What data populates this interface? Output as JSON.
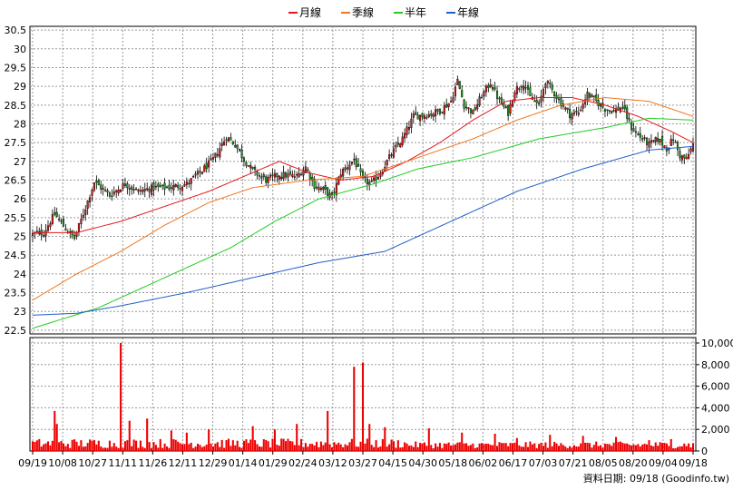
{
  "chart_data": {
    "type": "candlestick",
    "legend": [
      {
        "label": "月線",
        "color": "#e31a1c"
      },
      {
        "label": "季線",
        "color": "#f07820"
      },
      {
        "label": "半年",
        "color": "#22cc22"
      },
      {
        "label": "年線",
        "color": "#1f5fc8"
      }
    ],
    "price_axis": {
      "ylim": [
        22.4,
        30.6
      ],
      "ticks": [
        22.5,
        23,
        23.5,
        24,
        24.5,
        25,
        25.5,
        26,
        26.5,
        27,
        27.5,
        28,
        28.5,
        29,
        29.5,
        30,
        30.5
      ],
      "tick_labels": [
        "22.5",
        "23",
        "23.5",
        "24",
        "24.5",
        "25",
        "25.5",
        "26",
        "26.5",
        "27",
        "27.5",
        "28",
        "28.5",
        "29",
        "29.5",
        "30",
        "30.5"
      ]
    },
    "volume_axis": {
      "ylim": [
        0,
        10000
      ],
      "ticks": [
        0,
        2000,
        4000,
        6000,
        8000,
        10000
      ],
      "tick_labels": [
        "0",
        "2,000",
        "4,000",
        "6,000",
        "8,000",
        "10,000"
      ]
    },
    "x_tick_labels": [
      "09/19",
      "10/08",
      "10/27",
      "11/11",
      "11/26",
      "12/11",
      "12/29",
      "01/14",
      "01/29",
      "02/24",
      "03/12",
      "03/27",
      "04/15",
      "04/30",
      "05/18",
      "06/02",
      "06/17",
      "07/03",
      "07/21",
      "08/05",
      "08/20",
      "09/04",
      "09/18"
    ],
    "series": [
      {
        "name": "月線",
        "ma_period": 20,
        "color": "#e31a1c",
        "keypoints": [
          [
            20,
            25.1
          ],
          [
            40,
            25.4
          ],
          [
            60,
            25.8
          ],
          [
            80,
            26.2
          ],
          [
            100,
            26.7
          ],
          [
            112,
            27.0
          ],
          [
            125,
            26.7
          ],
          [
            140,
            26.5
          ],
          [
            155,
            26.6
          ],
          [
            170,
            27.0
          ],
          [
            185,
            27.5
          ],
          [
            200,
            28.1
          ],
          [
            215,
            28.6
          ],
          [
            230,
            28.7
          ],
          [
            245,
            28.7
          ],
          [
            260,
            28.5
          ],
          [
            275,
            28.2
          ],
          [
            290,
            27.8
          ],
          [
            300,
            27.5
          ]
        ]
      },
      {
        "name": "季線",
        "ma_period": 60,
        "color": "#f07820",
        "keypoints": [
          [
            0,
            23.3
          ],
          [
            20,
            24.0
          ],
          [
            40,
            24.6
          ],
          [
            60,
            25.3
          ],
          [
            80,
            25.9
          ],
          [
            100,
            26.3
          ],
          [
            125,
            26.5
          ],
          [
            150,
            26.6
          ],
          [
            175,
            27.1
          ],
          [
            200,
            27.6
          ],
          [
            220,
            28.1
          ],
          [
            240,
            28.5
          ],
          [
            260,
            28.7
          ],
          [
            280,
            28.6
          ],
          [
            300,
            28.2
          ]
        ]
      },
      {
        "name": "半年",
        "ma_period": 120,
        "color": "#22cc22",
        "keypoints": [
          [
            0,
            22.55
          ],
          [
            30,
            23.1
          ],
          [
            60,
            23.9
          ],
          [
            90,
            24.7
          ],
          [
            110,
            25.4
          ],
          [
            130,
            26.0
          ],
          [
            155,
            26.4
          ],
          [
            175,
            26.8
          ],
          [
            200,
            27.1
          ],
          [
            230,
            27.6
          ],
          [
            260,
            27.9
          ],
          [
            280,
            28.15
          ],
          [
            300,
            28.1
          ]
        ]
      },
      {
        "name": "年線",
        "ma_period": 240,
        "color": "#1f5fc8",
        "keypoints": [
          [
            0,
            22.9
          ],
          [
            20,
            22.95
          ],
          [
            40,
            23.15
          ],
          [
            70,
            23.5
          ],
          [
            100,
            23.9
          ],
          [
            130,
            24.3
          ],
          [
            160,
            24.6
          ],
          [
            190,
            25.4
          ],
          [
            220,
            26.2
          ],
          [
            250,
            26.8
          ],
          [
            280,
            27.3
          ],
          [
            300,
            27.4
          ]
        ]
      }
    ],
    "candles_close_keypoints": [
      [
        0,
        25.05
      ],
      [
        5,
        25.1
      ],
      [
        10,
        25.6
      ],
      [
        15,
        25.2
      ],
      [
        19,
        24.95
      ],
      [
        23,
        25.6
      ],
      [
        28,
        26.45
      ],
      [
        35,
        26.1
      ],
      [
        42,
        26.4
      ],
      [
        48,
        26.2
      ],
      [
        55,
        26.3
      ],
      [
        62,
        26.3
      ],
      [
        70,
        26.4
      ],
      [
        76,
        26.7
      ],
      [
        82,
        27.05
      ],
      [
        88,
        27.65
      ],
      [
        92,
        27.45
      ],
      [
        96,
        27.05
      ],
      [
        100,
        26.75
      ],
      [
        106,
        26.5
      ],
      [
        112,
        26.65
      ],
      [
        120,
        26.6
      ],
      [
        124,
        26.85
      ],
      [
        128,
        26.35
      ],
      [
        132,
        26.25
      ],
      [
        136,
        26.05
      ],
      [
        140,
        26.7
      ],
      [
        146,
        27.05
      ],
      [
        150,
        26.5
      ],
      [
        154,
        26.4
      ],
      [
        158,
        26.7
      ],
      [
        163,
        27.2
      ],
      [
        168,
        27.6
      ],
      [
        173,
        28.2
      ],
      [
        180,
        28.25
      ],
      [
        185,
        28.35
      ],
      [
        190,
        28.6
      ],
      [
        193,
        29.15
      ],
      [
        196,
        28.5
      ],
      [
        200,
        28.3
      ],
      [
        204,
        28.75
      ],
      [
        208,
        29.1
      ],
      [
        212,
        28.6
      ],
      [
        216,
        28.3
      ],
      [
        219,
        28.9
      ],
      [
        223,
        29.1
      ],
      [
        226,
        28.7
      ],
      [
        230,
        28.5
      ],
      [
        233,
        29.15
      ],
      [
        236,
        28.9
      ],
      [
        240,
        28.55
      ],
      [
        244,
        28.25
      ],
      [
        248,
        28.3
      ],
      [
        252,
        28.8
      ],
      [
        256,
        28.6
      ],
      [
        260,
        28.4
      ],
      [
        264,
        28.35
      ],
      [
        268,
        28.45
      ],
      [
        272,
        27.9
      ],
      [
        276,
        27.65
      ],
      [
        280,
        27.45
      ],
      [
        284,
        27.6
      ],
      [
        288,
        27.35
      ],
      [
        291,
        27.6
      ],
      [
        294,
        27.15
      ],
      [
        297,
        27.05
      ],
      [
        300,
        27.45
      ]
    ],
    "candles_count": 301,
    "volume_spikes": [
      [
        10,
        3700
      ],
      [
        11,
        2500
      ],
      [
        40,
        10000
      ],
      [
        44,
        2800
      ],
      [
        52,
        3000
      ],
      [
        63,
        1900
      ],
      [
        70,
        1700
      ],
      [
        80,
        2000
      ],
      [
        100,
        2300
      ],
      [
        110,
        2000
      ],
      [
        120,
        2500
      ],
      [
        134,
        3700
      ],
      [
        146,
        7800
      ],
      [
        150,
        8200
      ],
      [
        153,
        2500
      ],
      [
        160,
        2200
      ],
      [
        180,
        2100
      ],
      [
        195,
        1700
      ],
      [
        210,
        1600
      ],
      [
        220,
        1200
      ],
      [
        235,
        1500
      ],
      [
        250,
        1400
      ],
      [
        265,
        1300
      ],
      [
        280,
        1000
      ],
      [
        290,
        1100
      ],
      [
        298,
        700
      ]
    ],
    "footer_text": "資料日期: 09/18  (Goodinfo.tw)"
  }
}
